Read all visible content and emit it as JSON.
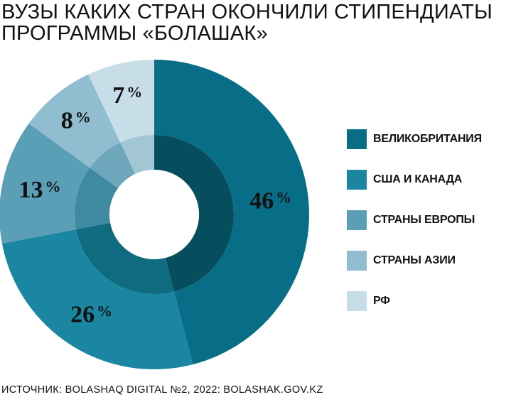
{
  "title": {
    "line1": "ВУЗЫ КАКИХ СТРАН ОКОНЧИЛИ СТИПЕНДИАТЫ",
    "line2": "ПРОГРАММЫ «БОЛАШАК»"
  },
  "source": "ИСТОЧНИК: BOLASHAQ DIGITAL №2, 2022: BOLASHAK.GOV.KZ",
  "chart_data": {
    "type": "pie",
    "variant": "donut",
    "unit": "%",
    "slices": [
      {
        "label": "ВЕЛИКОБРИТАНИЯ",
        "value": 46,
        "color": "#086e88",
        "inner_color": "#064d5e"
      },
      {
        "label": "США И КАНАДА",
        "value": 26,
        "color": "#1a86a1",
        "inner_color": "#0f6b7f"
      },
      {
        "label": "СТРАНЫ ЕВРОПЫ",
        "value": 13,
        "color": "#5a9fb6",
        "inner_color": "#3f8aa1"
      },
      {
        "label": "СТРАНЫ АЗИИ",
        "value": 8,
        "color": "#90bdd0",
        "inner_color": "#6ea7bc"
      },
      {
        "label": "РФ",
        "value": 7,
        "color": "#c7dde8",
        "inner_color": "#a3c6d4"
      }
    ],
    "legend_position": "right"
  }
}
